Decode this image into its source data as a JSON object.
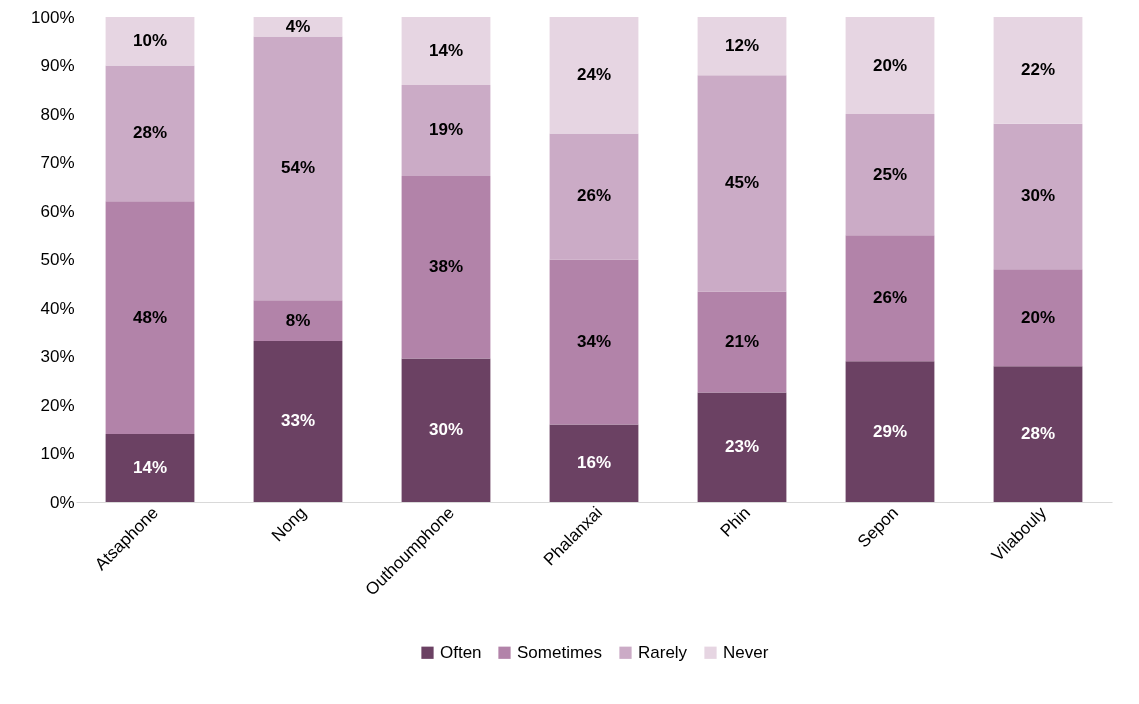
{
  "chart_data": {
    "type": "bar",
    "stacked": true,
    "categories": [
      "Atsaphone",
      "Nong",
      "Outhoumphone",
      "Phalanxai",
      "Phin",
      "Sepon",
      "Vilabouly"
    ],
    "series": [
      {
        "name": "Often",
        "color": "#6b4163",
        "values": [
          14,
          33.2,
          29.6,
          16,
          22.6,
          29,
          28
        ],
        "value_labels": [
          "14%",
          "33%",
          "30%",
          "16%",
          "23%",
          "29%",
          "28%"
        ]
      },
      {
        "name": "Sometimes",
        "color": "#b283a9",
        "values": [
          48,
          8.4,
          37.6,
          34,
          20.8,
          26,
          20
        ],
        "value_labels": [
          "48%",
          "8%",
          "38%",
          "34%",
          "21%",
          "26%",
          "20%"
        ]
      },
      {
        "name": "Rarely",
        "color": "#cbabc6",
        "values": [
          28,
          54.4,
          18.8,
          26,
          44.6,
          25,
          30
        ],
        "value_labels": [
          "28%",
          "54%",
          "19%",
          "26%",
          "45%",
          "25%",
          "30%"
        ]
      },
      {
        "name": "Never",
        "color": "#e6d5e2",
        "values": [
          10,
          4,
          14,
          24,
          12,
          20,
          22
        ],
        "value_labels": [
          "10%",
          "4%",
          "14%",
          "24%",
          "12%",
          "20%",
          "22%"
        ]
      }
    ],
    "ylim": [
      0,
      100
    ],
    "yticks": [
      {
        "value": 0,
        "label": "0%"
      },
      {
        "value": 10,
        "label": "10%"
      },
      {
        "value": 20,
        "label": "20%"
      },
      {
        "value": 30,
        "label": "30%"
      },
      {
        "value": 40,
        "label": "40%"
      },
      {
        "value": 50,
        "label": "50%"
      },
      {
        "value": 60,
        "label": "60%"
      },
      {
        "value": 70,
        "label": "70%"
      },
      {
        "value": 80,
        "label": "80%"
      },
      {
        "value": 90,
        "label": "90%"
      },
      {
        "value": 100,
        "label": "100%"
      }
    ],
    "grid": false,
    "legend": "bottom"
  }
}
